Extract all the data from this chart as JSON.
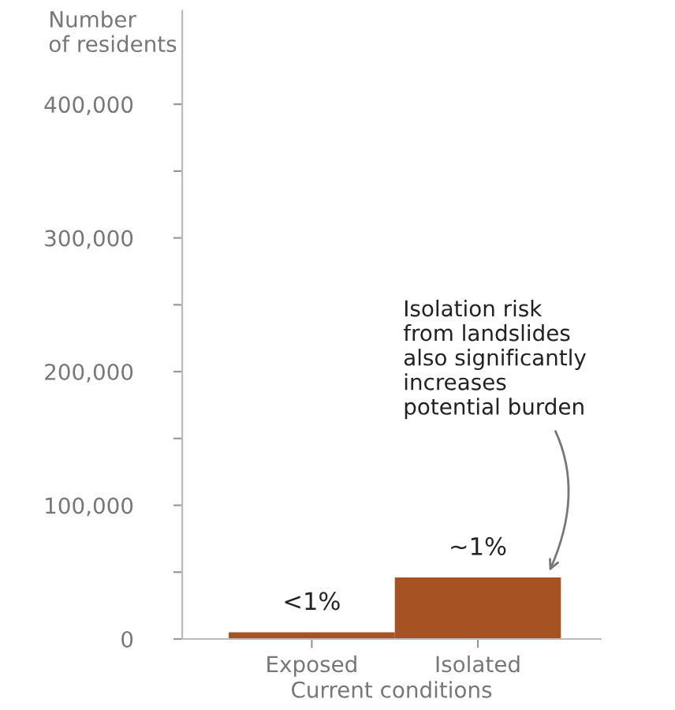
{
  "chart_data": {
    "type": "bar",
    "xlabel": "Current conditions",
    "ylabel": "Number\nof residents",
    "categories": [
      "Exposed",
      "Isolated"
    ],
    "values": [
      5000,
      46000
    ],
    "color": "#a65223",
    "ylim": [
      0,
      470000
    ],
    "yticks": [
      0,
      {
        "value": 50000,
        "label": null
      },
      {
        "value": 100000,
        "label": "100,000"
      },
      {
        "value": 150000,
        "label": null
      },
      {
        "value": 200000,
        "label": "200,000"
      },
      {
        "value": 250000,
        "label": null
      },
      {
        "value": 300000,
        "label": "300,000"
      },
      {
        "value": 350000,
        "label": null
      },
      {
        "value": 400000,
        "label": "400,000"
      }
    ],
    "annotations": [
      {
        "text": "<1%",
        "x": "Exposed",
        "y": 5000
      },
      {
        "text": "~1%",
        "x": "Isolated",
        "y": 46000
      },
      "Isolation risk\nfrom landslides\nalso significantly\nincreases\npotential burden"
    ],
    "grid": false,
    "legend": false
  }
}
